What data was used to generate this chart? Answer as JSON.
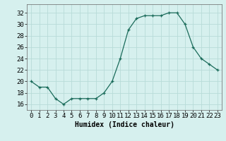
{
  "x": [
    0,
    1,
    2,
    3,
    4,
    5,
    6,
    7,
    8,
    9,
    10,
    11,
    12,
    13,
    14,
    15,
    16,
    17,
    18,
    19,
    20,
    21,
    22,
    23
  ],
  "y": [
    20,
    19,
    19,
    17,
    16,
    17,
    17,
    17,
    17,
    18,
    20,
    24,
    29,
    31,
    31.5,
    31.5,
    31.5,
    32,
    32,
    30,
    26,
    24,
    23,
    22
  ],
  "line_color": "#1a6b5a",
  "marker": "+",
  "bg_color": "#d6f0ee",
  "grid_color": "#b8dbd8",
  "xlabel": "Humidex (Indice chaleur)",
  "ylabel_ticks": [
    16,
    18,
    20,
    22,
    24,
    26,
    28,
    30,
    32
  ],
  "xlim": [
    -0.5,
    23.5
  ],
  "ylim": [
    15.0,
    33.5
  ],
  "xlabel_fontsize": 7,
  "tick_fontsize": 6.5
}
